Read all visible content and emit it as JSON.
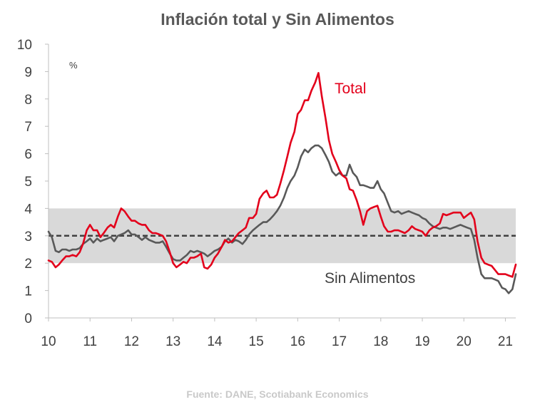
{
  "chart_data": {
    "type": "line",
    "title": "Inflación total y Sin Alimentos",
    "ylabel": "%",
    "xlabel": "",
    "xlim": [
      10,
      21.25
    ],
    "ylim": [
      0,
      10
    ],
    "x_ticks": [
      "10",
      "11",
      "12",
      "13",
      "14",
      "15",
      "16",
      "17",
      "18",
      "19",
      "20",
      "21"
    ],
    "y_ticks": [
      "0",
      "1",
      "2",
      "3",
      "4",
      "5",
      "6",
      "7",
      "8",
      "9",
      "10"
    ],
    "target": 3,
    "target_band": [
      2,
      4
    ],
    "annotations": {
      "total": "Total",
      "sin_alimentos": "Sin Alimentos"
    },
    "source": "Fuente: DANE, Scotiabank Economics",
    "colors": {
      "total": "#e3001b",
      "sin_alimentos": "#595959",
      "band": "#d9d9d9",
      "target": "#404040"
    },
    "series": [
      {
        "name": "Total",
        "x": [
          10.0,
          10.08,
          10.17,
          10.25,
          10.33,
          10.42,
          10.5,
          10.58,
          10.67,
          10.75,
          10.83,
          10.92,
          11.0,
          11.08,
          11.17,
          11.25,
          11.33,
          11.42,
          11.5,
          11.58,
          11.67,
          11.75,
          11.83,
          11.92,
          12.0,
          12.08,
          12.17,
          12.25,
          12.33,
          12.42,
          12.5,
          12.58,
          12.67,
          12.75,
          12.83,
          12.92,
          13.0,
          13.08,
          13.17,
          13.25,
          13.33,
          13.42,
          13.5,
          13.58,
          13.67,
          13.75,
          13.83,
          13.92,
          14.0,
          14.08,
          14.17,
          14.25,
          14.33,
          14.42,
          14.5,
          14.58,
          14.67,
          14.75,
          14.83,
          14.92,
          15.0,
          15.08,
          15.17,
          15.25,
          15.33,
          15.42,
          15.5,
          15.58,
          15.67,
          15.75,
          15.83,
          15.92,
          16.0,
          16.08,
          16.17,
          16.25,
          16.33,
          16.42,
          16.5,
          16.58,
          16.67,
          16.75,
          16.83,
          16.92,
          17.0,
          17.08,
          17.17,
          17.25,
          17.33,
          17.42,
          17.5,
          17.58,
          17.67,
          17.75,
          17.83,
          17.92,
          18.0,
          18.08,
          18.17,
          18.25,
          18.33,
          18.42,
          18.5,
          18.58,
          18.67,
          18.75,
          18.83,
          18.92,
          19.0,
          19.08,
          19.17,
          19.25,
          19.33,
          19.42,
          19.5,
          19.58,
          19.67,
          19.75,
          19.83,
          19.92,
          20.0,
          20.08,
          20.17,
          20.25,
          20.33,
          20.42,
          20.5,
          20.58,
          20.67,
          20.75,
          20.83,
          20.92,
          21.0,
          21.08,
          21.17,
          21.25
        ],
        "values": [
          2.1,
          2.05,
          1.85,
          1.95,
          2.1,
          2.25,
          2.25,
          2.3,
          2.25,
          2.4,
          2.7,
          3.2,
          3.4,
          3.2,
          3.2,
          2.95,
          3.1,
          3.3,
          3.4,
          3.3,
          3.7,
          4.0,
          3.9,
          3.7,
          3.55,
          3.55,
          3.45,
          3.4,
          3.4,
          3.2,
          3.1,
          3.1,
          3.05,
          3.0,
          2.8,
          2.4,
          2.0,
          1.85,
          1.95,
          2.05,
          2.0,
          2.2,
          2.2,
          2.25,
          2.35,
          1.85,
          1.8,
          1.95,
          2.2,
          2.35,
          2.6,
          2.85,
          2.75,
          2.8,
          2.95,
          3.1,
          3.2,
          3.3,
          3.65,
          3.65,
          3.8,
          4.35,
          4.55,
          4.65,
          4.4,
          4.4,
          4.5,
          4.9,
          5.4,
          5.9,
          6.4,
          6.8,
          7.45,
          7.6,
          7.95,
          7.95,
          8.3,
          8.6,
          8.95,
          8.1,
          7.3,
          6.5,
          6.0,
          5.7,
          5.4,
          5.2,
          5.1,
          4.7,
          4.65,
          4.3,
          3.9,
          3.4,
          3.9,
          4.0,
          4.05,
          4.1,
          3.7,
          3.35,
          3.15,
          3.15,
          3.2,
          3.2,
          3.15,
          3.1,
          3.2,
          3.35,
          3.25,
          3.2,
          3.15,
          3.0,
          3.2,
          3.3,
          3.35,
          3.45,
          3.8,
          3.75,
          3.8,
          3.85,
          3.85,
          3.85,
          3.65,
          3.75,
          3.85,
          3.6,
          2.8,
          2.2,
          2.0,
          1.95,
          1.9,
          1.75,
          1.6,
          1.6,
          1.6,
          1.55,
          1.5,
          1.95
        ]
      },
      {
        "name": "Sin Alimentos",
        "x": [
          10.0,
          10.08,
          10.17,
          10.25,
          10.33,
          10.42,
          10.5,
          10.58,
          10.67,
          10.75,
          10.83,
          10.92,
          11.0,
          11.08,
          11.17,
          11.25,
          11.33,
          11.42,
          11.5,
          11.58,
          11.67,
          11.75,
          11.83,
          11.92,
          12.0,
          12.08,
          12.17,
          12.25,
          12.33,
          12.42,
          12.5,
          12.58,
          12.67,
          12.75,
          12.83,
          12.92,
          13.0,
          13.08,
          13.17,
          13.25,
          13.33,
          13.42,
          13.5,
          13.58,
          13.67,
          13.75,
          13.83,
          13.92,
          14.0,
          14.08,
          14.17,
          14.25,
          14.33,
          14.42,
          14.5,
          14.58,
          14.67,
          14.75,
          14.83,
          14.92,
          15.0,
          15.08,
          15.17,
          15.25,
          15.33,
          15.42,
          15.5,
          15.58,
          15.67,
          15.75,
          15.83,
          15.92,
          16.0,
          16.08,
          16.17,
          16.25,
          16.33,
          16.42,
          16.5,
          16.58,
          16.67,
          16.75,
          16.83,
          16.92,
          17.0,
          17.08,
          17.17,
          17.25,
          17.33,
          17.42,
          17.5,
          17.58,
          17.67,
          17.75,
          17.83,
          17.92,
          18.0,
          18.08,
          18.17,
          18.25,
          18.33,
          18.42,
          18.5,
          18.58,
          18.67,
          18.75,
          18.83,
          18.92,
          19.0,
          19.08,
          19.17,
          19.25,
          19.33,
          19.42,
          19.5,
          19.58,
          19.67,
          19.75,
          19.83,
          19.92,
          20.0,
          20.08,
          20.17,
          20.25,
          20.33,
          20.42,
          20.5,
          20.58,
          20.67,
          20.75,
          20.83,
          20.92,
          21.0,
          21.08,
          21.17,
          21.25
        ],
        "values": [
          3.15,
          2.95,
          2.45,
          2.4,
          2.5,
          2.5,
          2.45,
          2.5,
          2.5,
          2.55,
          2.7,
          2.8,
          2.9,
          2.75,
          2.9,
          2.8,
          2.85,
          2.9,
          2.95,
          2.8,
          3.0,
          3.05,
          3.1,
          3.2,
          3.05,
          3.05,
          2.95,
          2.85,
          2.95,
          2.85,
          2.8,
          2.75,
          2.75,
          2.8,
          2.6,
          2.35,
          2.15,
          2.1,
          2.1,
          2.2,
          2.3,
          2.45,
          2.4,
          2.45,
          2.4,
          2.35,
          2.25,
          2.35,
          2.45,
          2.5,
          2.6,
          2.8,
          2.9,
          2.75,
          2.85,
          2.8,
          2.7,
          2.85,
          3.05,
          3.2,
          3.3,
          3.4,
          3.5,
          3.5,
          3.6,
          3.75,
          3.9,
          4.1,
          4.4,
          4.75,
          5.0,
          5.2,
          5.5,
          5.9,
          6.15,
          6.05,
          6.2,
          6.3,
          6.3,
          6.2,
          5.95,
          5.7,
          5.35,
          5.2,
          5.3,
          5.2,
          5.2,
          5.6,
          5.3,
          5.15,
          4.85,
          4.85,
          4.8,
          4.75,
          4.75,
          5.0,
          4.7,
          4.55,
          4.2,
          3.9,
          3.85,
          3.9,
          3.8,
          3.85,
          3.9,
          3.85,
          3.8,
          3.75,
          3.65,
          3.6,
          3.45,
          3.35,
          3.3,
          3.25,
          3.3,
          3.3,
          3.25,
          3.3,
          3.35,
          3.4,
          3.35,
          3.3,
          3.25,
          2.85,
          2.2,
          1.6,
          1.45,
          1.45,
          1.45,
          1.4,
          1.35,
          1.1,
          1.05,
          0.9,
          1.05,
          1.6
        ]
      }
    ]
  }
}
